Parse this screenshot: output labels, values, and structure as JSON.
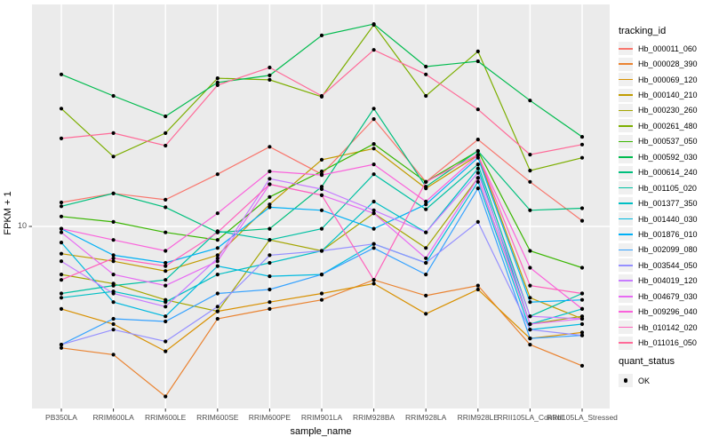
{
  "colors": {
    "panel_bg": "#EBEBEB",
    "grid": "#FFFFFF",
    "tick": "#333333",
    "tick_label": "#4D4D4D",
    "point": "#000000",
    "legend_key_bg": "#F0F0F0"
  },
  "chart_data": {
    "type": "line",
    "xlabel": "sample_name",
    "ylabel": "FPKM + 1",
    "y_scale": "log10",
    "y_tick_labels": [
      "10"
    ],
    "grid": "major-white-on-gray",
    "legend_position": "right",
    "legend_title": "tracking_id",
    "point_legend": {
      "title": "quant_status",
      "ok_label": "OK"
    },
    "categories": [
      "PB350LA",
      "RRIM600LA",
      "RRIM600LE",
      "RRIM600SE",
      "RRIM600PE",
      "RRIM901LA",
      "RRIM928BA",
      "RRIM928LA",
      "RRIM928LE",
      "RRII105LA_Control",
      "RRII105LA_Stressed"
    ],
    "series": [
      {
        "name": "Hb_000011_060",
        "color": "#F8766D",
        "values": [
          12.3,
          13.3,
          12.6,
          15.7,
          19.9,
          15.7,
          25.3,
          14.7,
          21.2,
          14.7,
          10.5
        ]
      },
      {
        "name": "Hb_000028_390",
        "color": "#EA8331",
        "values": [
          3.5,
          3.3,
          2.3,
          4.5,
          4.9,
          5.3,
          6.3,
          5.5,
          6.0,
          3.6,
          3.0
        ]
      },
      {
        "name": "Hb_000069_120",
        "color": "#D89000",
        "values": [
          4.9,
          4.3,
          3.4,
          4.8,
          5.2,
          5.6,
          6.1,
          4.7,
          5.8,
          3.8,
          4.0
        ]
      },
      {
        "name": "Hb_000140_210",
        "color": "#C09B00",
        "values": [
          7.9,
          7.4,
          6.8,
          7.8,
          12.1,
          17.8,
          19.6,
          13.9,
          18.5,
          5.4,
          4.5
        ]
      },
      {
        "name": "Hb_000230_260",
        "color": "#A3A500",
        "values": [
          6.6,
          6.1,
          5.3,
          4.8,
          8.9,
          8.1,
          11.2,
          8.3,
          15.2,
          4.3,
          4.6
        ]
      },
      {
        "name": "Hb_000261_480",
        "color": "#7CAE00",
        "values": [
          27.7,
          18.3,
          22.4,
          36.0,
          35.5,
          30.7,
          57.1,
          30.9,
          45.4,
          16.2,
          18.1
        ]
      },
      {
        "name": "Hb_000537_050",
        "color": "#39B600",
        "values": [
          10.9,
          10.4,
          9.5,
          8.9,
          12.9,
          16.1,
          20.4,
          14.7,
          19.2,
          8.1,
          7.0
        ]
      },
      {
        "name": "Hb_000592_030",
        "color": "#00BB4E",
        "values": [
          37.2,
          30.9,
          25.9,
          34.7,
          36.9,
          52.1,
          57.5,
          39.8,
          41.7,
          29.7,
          21.7
        ]
      },
      {
        "name": "Hb_000614_240",
        "color": "#00BF7D",
        "values": [
          11.9,
          13.3,
          11.8,
          9.5,
          9.8,
          14.1,
          27.7,
          14.1,
          19.2,
          11.5,
          11.7
        ]
      },
      {
        "name": "Hb_001105_020",
        "color": "#00C1A3",
        "values": [
          5.6,
          6.0,
          6.3,
          9.6,
          8.9,
          9.8,
          15.7,
          11.6,
          17.1,
          4.6,
          5.6
        ]
      },
      {
        "name": "Hb_001377_350",
        "color": "#00BFC4",
        "values": [
          5.4,
          5.7,
          5.2,
          6.6,
          7.3,
          8.1,
          12.4,
          9.5,
          16.5,
          4.3,
          4.9
        ]
      },
      {
        "name": "Hb_001440_030",
        "color": "#00BAE0",
        "values": [
          8.7,
          5.2,
          4.6,
          7.1,
          6.5,
          6.6,
          8.6,
          7.3,
          14.7,
          4.1,
          4.3
        ]
      },
      {
        "name": "Hb_001876_010",
        "color": "#00B0F6",
        "values": [
          9.8,
          7.8,
          7.3,
          8.3,
          11.8,
          11.5,
          9.8,
          12.1,
          18.1,
          5.2,
          5.3
        ]
      },
      {
        "name": "Hb_002099_080",
        "color": "#35A2FF",
        "values": [
          3.6,
          4.5,
          4.4,
          5.6,
          5.8,
          6.6,
          8.3,
          6.6,
          13.9,
          3.8,
          3.9
        ]
      },
      {
        "name": "Hb_003544_050",
        "color": "#9590FF",
        "values": [
          3.6,
          4.1,
          3.7,
          5.0,
          7.8,
          8.1,
          8.6,
          7.3,
          10.4,
          4.1,
          3.9
        ]
      },
      {
        "name": "Hb_004019_120",
        "color": "#C77CFF",
        "values": [
          7.4,
          5.6,
          5.0,
          7.6,
          15.1,
          13.8,
          11.5,
          9.5,
          15.9,
          4.6,
          4.5
        ]
      },
      {
        "name": "Hb_004679_030",
        "color": "#E76BF3",
        "values": [
          9.5,
          6.6,
          6.0,
          7.4,
          14.4,
          13.1,
          11.2,
          7.6,
          15.2,
          4.3,
          4.5
        ]
      },
      {
        "name": "Hb_009296_040",
        "color": "#FA62DB",
        "values": [
          9.8,
          8.9,
          8.1,
          11.2,
          16.1,
          15.6,
          17.1,
          12.4,
          18.5,
          7.0,
          4.9
        ]
      },
      {
        "name": "Hb_010142_020",
        "color": "#FF62BC",
        "values": [
          6.3,
          7.6,
          7.1,
          9.5,
          14.4,
          13.1,
          6.3,
          14.7,
          18.6,
          6.0,
          5.6
        ]
      },
      {
        "name": "Hb_011016_050",
        "color": "#FF6A98",
        "values": [
          21.4,
          22.4,
          20.1,
          33.9,
          39.5,
          30.9,
          46.0,
          37.2,
          27.5,
          18.6,
          20.3
        ]
      }
    ]
  }
}
